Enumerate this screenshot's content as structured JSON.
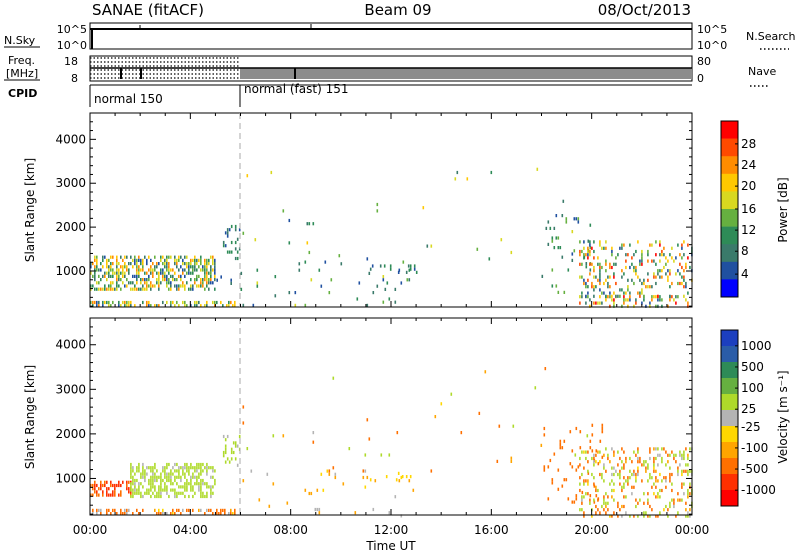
{
  "header": {
    "title": "SANAE (fitACF)",
    "beam": "Beam 09",
    "date": "08/Oct/2013"
  },
  "status_panels": {
    "nsky_label": "N.Sky",
    "nsky_ticks": [
      "10^5",
      "10^0"
    ],
    "nsearch_label": "N.Search",
    "nsearch_ticks": [
      "10^5",
      "10^0"
    ],
    "freq_label_line1": "Freq.",
    "freq_label_line2": "[MHz]",
    "freq_ticks": [
      "18",
      "8"
    ],
    "nave_label": "Nave",
    "nave_ticks": [
      "80",
      "0"
    ],
    "cpid_label": "CPID",
    "cpid_modes": [
      {
        "text": "normal 150",
        "start_hour": 0,
        "end_hour": 6
      },
      {
        "text": "normal (fast) 151",
        "start_hour": 6,
        "end_hour": 24
      }
    ]
  },
  "colorbars": {
    "power": {
      "title": "Power [dB]",
      "ticks": [
        "28",
        "24",
        "20",
        "16",
        "12",
        "8",
        "4"
      ],
      "colors": [
        "#ff0000",
        "#ff4a00",
        "#ff8c00",
        "#ffc800",
        "#d8d820",
        "#66b040",
        "#2e8b57",
        "#3a7a6a",
        "#2050a0",
        "#0000ff"
      ]
    },
    "velocity": {
      "title": "Velocity [m s⁻¹]",
      "ticks": [
        "1000",
        "500",
        "100",
        "25",
        "-25",
        "-100",
        "-500",
        "-1000"
      ],
      "colors": [
        "#1c3fbf",
        "#2a5ca8",
        "#2e8b57",
        "#66b040",
        "#aeda2a",
        "#b4b4b4",
        "#ffd700",
        "#ffa500",
        "#ff7000",
        "#ff3000",
        "#ff0000"
      ]
    }
  },
  "chart_data": [
    {
      "type": "heatmap",
      "quantity": "power",
      "ylabel": "Slant Range [km]",
      "xlabel": "Time UT",
      "xlim_hours": [
        0,
        24
      ],
      "ylim_km": [
        180,
        4600
      ],
      "x_ticks": [
        "00:00",
        "04:00",
        "08:00",
        "12:00",
        "16:00",
        "20:00",
        "00:00"
      ],
      "y_ticks": [
        1000,
        2000,
        3000,
        4000
      ],
      "scatter_regions": [
        {
          "t": [
            0.0,
            5.8
          ],
          "r": [
            180,
            320
          ],
          "density": 0.5,
          "values": [
            4,
            24
          ]
        },
        {
          "t": [
            0.0,
            5.0
          ],
          "r": [
            600,
            1350
          ],
          "density": 0.55,
          "values": [
            4,
            24
          ]
        },
        {
          "t": [
            4.8,
            5.6
          ],
          "r": [
            700,
            900
          ],
          "density": 0.12,
          "values": [
            4,
            16
          ]
        },
        {
          "t": [
            5.3,
            6.0
          ],
          "r": [
            1300,
            2050
          ],
          "density": 0.22,
          "values": [
            4,
            12
          ]
        },
        {
          "t": [
            6.0,
            13.0
          ],
          "r": [
            180,
            1200
          ],
          "density": 0.03,
          "values": [
            4,
            16
          ]
        },
        {
          "t": [
            6.0,
            20.0
          ],
          "r": [
            1200,
            3500
          ],
          "density": 0.006,
          "values": [
            4,
            20
          ]
        },
        {
          "t": [
            11.0,
            13.0
          ],
          "r": [
            1000,
            1150
          ],
          "density": 0.15,
          "values": [
            4,
            12
          ]
        },
        {
          "t": [
            18.0,
            20.0
          ],
          "r": [
            500,
            2300
          ],
          "density": 0.07,
          "values": [
            4,
            16
          ]
        },
        {
          "t": [
            19.5,
            24.0
          ],
          "r": [
            180,
            450
          ],
          "density": 0.3,
          "values": [
            4,
            28
          ]
        },
        {
          "t": [
            19.5,
            24.0
          ],
          "r": [
            450,
            1700
          ],
          "density": 0.22,
          "values": [
            4,
            28
          ]
        }
      ]
    },
    {
      "type": "heatmap",
      "quantity": "velocity",
      "ylabel": "Slant Range [km]",
      "xlabel": "Time UT",
      "xlim_hours": [
        0,
        24
      ],
      "ylim_km": [
        180,
        4600
      ],
      "x_ticks": [
        "00:00",
        "04:00",
        "08:00",
        "12:00",
        "16:00",
        "20:00",
        "00:00"
      ],
      "y_ticks": [
        1000,
        2000,
        3000,
        4000
      ],
      "scatter_regions": [
        {
          "t": [
            0.0,
            5.8
          ],
          "r": [
            180,
            320
          ],
          "density": 0.45,
          "values": [
            -500,
            100
          ]
        },
        {
          "t": [
            0.0,
            1.6
          ],
          "r": [
            650,
            950
          ],
          "density": 0.5,
          "values": [
            -1000,
            -100
          ]
        },
        {
          "t": [
            1.6,
            5.0
          ],
          "r": [
            600,
            1350
          ],
          "density": 0.55,
          "values": [
            25,
            500
          ]
        },
        {
          "t": [
            5.3,
            6.0
          ],
          "r": [
            1300,
            2050
          ],
          "density": 0.22,
          "values": [
            25,
            500
          ]
        },
        {
          "t": [
            6.0,
            13.0
          ],
          "r": [
            180,
            1200
          ],
          "density": 0.03,
          "values": [
            -100,
            100
          ]
        },
        {
          "t": [
            6.0,
            20.0
          ],
          "r": [
            1200,
            3500
          ],
          "density": 0.006,
          "values": [
            -500,
            500
          ]
        },
        {
          "t": [
            11.0,
            13.0
          ],
          "r": [
            1000,
            1150
          ],
          "density": 0.15,
          "values": [
            -25,
            25
          ]
        },
        {
          "t": [
            18.0,
            20.5
          ],
          "r": [
            500,
            2300
          ],
          "density": 0.07,
          "values": [
            -500,
            -100
          ]
        },
        {
          "t": [
            19.5,
            24.0
          ],
          "r": [
            180,
            1700
          ],
          "density": 0.26,
          "values": [
            -500,
            500
          ]
        }
      ]
    }
  ]
}
